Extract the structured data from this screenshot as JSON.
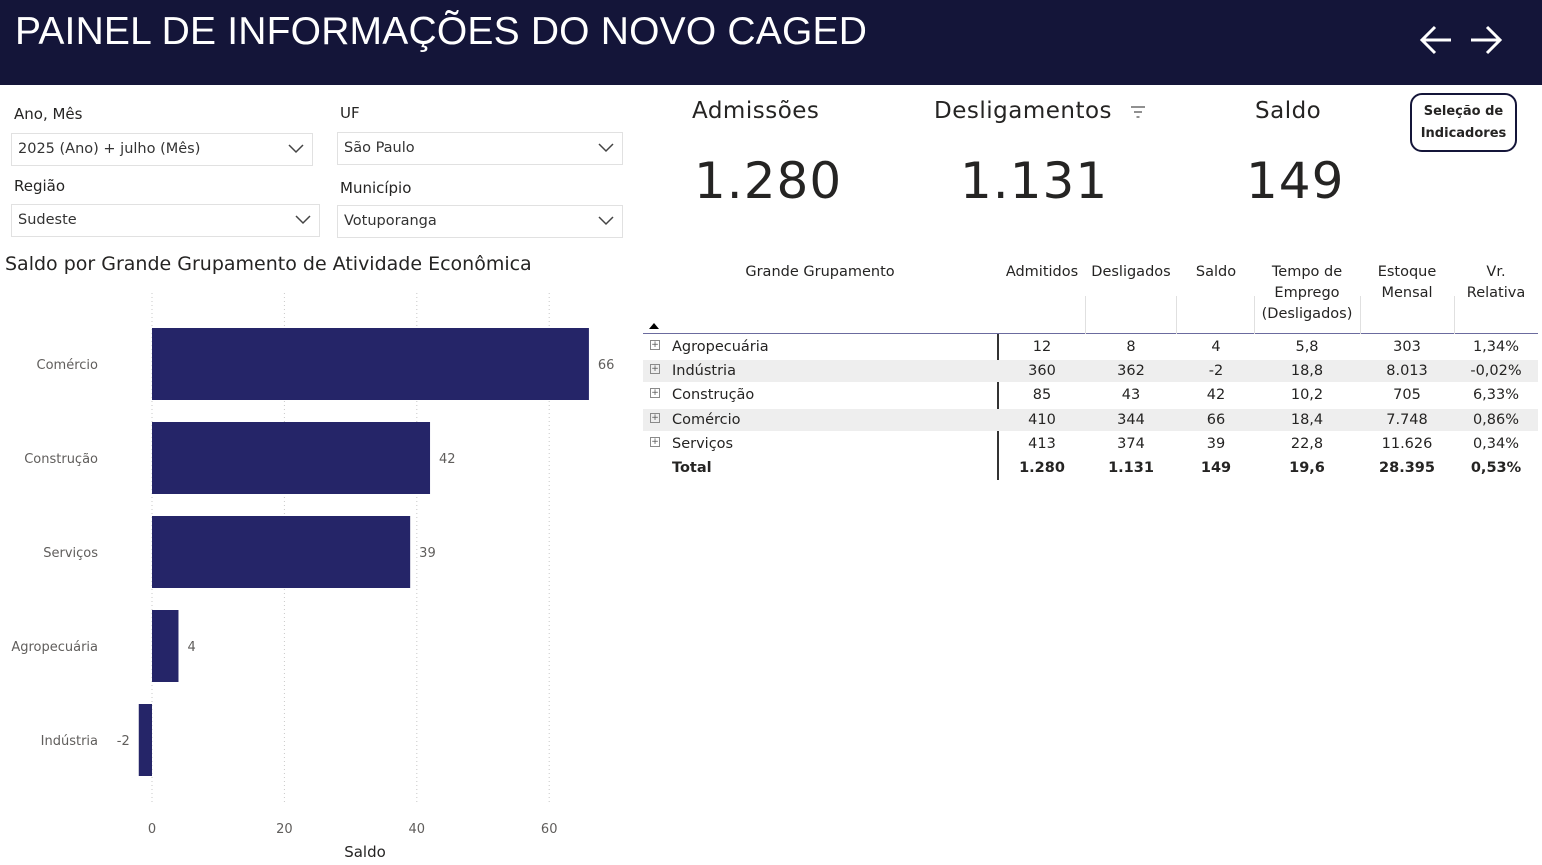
{
  "header": {
    "title": "PAINEL DE INFORMAÇÕES DO NOVO CAGED",
    "back_icon": "arrow-left-icon",
    "forward_icon": "arrow-right-icon"
  },
  "filters": {
    "ano_mes": {
      "label": "Ano, Mês",
      "value": "2025 (Ano) + julho (Mês)"
    },
    "uf": {
      "label": "UF",
      "value": "São Paulo"
    },
    "regiao": {
      "label": "Região",
      "value": "Sudeste"
    },
    "municipio": {
      "label": "Município",
      "value": "Votuporanga"
    }
  },
  "kpis": {
    "admissoes": {
      "label": "Admissões",
      "value": "1.280"
    },
    "desligamentos": {
      "label": "Desligamentos",
      "value": "1.131"
    },
    "saldo": {
      "label": "Saldo",
      "value": "149"
    }
  },
  "selection_button": {
    "line1": "Seleção de",
    "line2": "Indicadores"
  },
  "chart_data": {
    "type": "bar",
    "orientation": "horizontal",
    "title": "Saldo por Grande Grupamento de Atividade Econômica",
    "categories": [
      "Comércio",
      "Construção",
      "Serviços",
      "Agropecuária",
      "Indústria"
    ],
    "values": [
      66,
      42,
      39,
      4,
      -2
    ],
    "xlabel": "Saldo",
    "ylabel": "",
    "xticks": [
      0,
      20,
      40,
      60
    ],
    "xlim": [
      -2,
      70
    ],
    "grid": "vertical dotted",
    "bar_color": "#252568"
  },
  "table": {
    "headers": {
      "name": "Grande Grupamento",
      "admitidos": "Admitidos",
      "desligados": "Desligados",
      "saldo": "Saldo",
      "tempo_l1": "Tempo de",
      "tempo_l2": "Emprego",
      "tempo_l3": "(Desligados)",
      "estoque_l1": "Estoque",
      "estoque_l2": "Mensal",
      "vr_l1": "Vr.",
      "vr_l2": "Relativa"
    },
    "rows": [
      {
        "name": "Agropecuária",
        "admitidos": "12",
        "desligados": "8",
        "saldo": "4",
        "tempo": "5,8",
        "estoque": "303",
        "vr": "1,34%"
      },
      {
        "name": "Indústria",
        "admitidos": "360",
        "desligados": "362",
        "saldo": "-2",
        "tempo": "18,8",
        "estoque": "8.013",
        "vr": "-0,02%"
      },
      {
        "name": "Construção",
        "admitidos": "85",
        "desligados": "43",
        "saldo": "42",
        "tempo": "10,2",
        "estoque": "705",
        "vr": "6,33%"
      },
      {
        "name": "Comércio",
        "admitidos": "410",
        "desligados": "344",
        "saldo": "66",
        "tempo": "18,4",
        "estoque": "7.748",
        "vr": "0,86%"
      },
      {
        "name": "Serviços",
        "admitidos": "413",
        "desligados": "374",
        "saldo": "39",
        "tempo": "22,8",
        "estoque": "11.626",
        "vr": "0,34%"
      }
    ],
    "total": {
      "name": "Total",
      "admitidos": "1.280",
      "desligados": "1.131",
      "saldo": "149",
      "tempo": "19,6",
      "estoque": "28.395",
      "vr": "0,53%"
    }
  },
  "colors": {
    "header_bg": "#141539",
    "bar": "#252568",
    "row_stripe": "#eeeeee"
  }
}
